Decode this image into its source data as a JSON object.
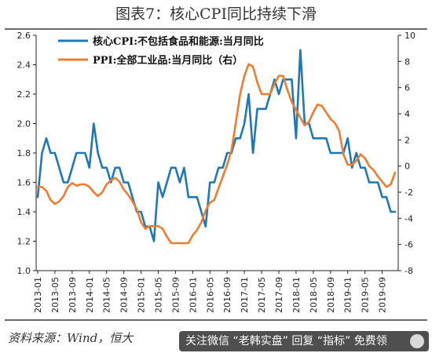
{
  "header": {
    "title": "图表7：核心CPI同比持续下滑"
  },
  "footer": {
    "source": "资料来源：Wind，恒大",
    "watermark": "关注微信 “老韩实盘” 回复 “指标” 免费领"
  },
  "chart_data": {
    "type": "line",
    "title": "",
    "xlabel": "",
    "ylabel": "",
    "x_ticks": [
      "2013-01",
      "2013-05",
      "2013-09",
      "2014-01",
      "2014-05",
      "2014-09",
      "2015-01",
      "2015-05",
      "2015-09",
      "2016-01",
      "2016-05",
      "2016-09",
      "2017-01",
      "2017-05",
      "2017-09",
      "2018-01",
      "2018-05",
      "2018-09",
      "2019-01",
      "2019-05",
      "2019-09"
    ],
    "y_left": {
      "range": [
        1.0,
        2.6
      ],
      "ticks": [
        "1.0",
        "1.2",
        "1.4",
        "1.6",
        "1.8",
        "2.0",
        "2.2",
        "2.4",
        "2.6"
      ]
    },
    "y_right": {
      "range": [
        -8,
        10
      ],
      "ticks": [
        "-8",
        "-6",
        "-4",
        "-2",
        "0",
        "2",
        "4",
        "6",
        "8",
        "10"
      ]
    },
    "legend_position": "top-left",
    "grid": false,
    "series": [
      {
        "name": "核心CPI:不包括食品和能源:当月同比",
        "axis": "left",
        "color": "#1f77b4",
        "x": [
          "2013-01",
          "2013-02",
          "2013-03",
          "2013-04",
          "2013-05",
          "2013-06",
          "2013-07",
          "2013-08",
          "2013-09",
          "2013-10",
          "2013-11",
          "2013-12",
          "2014-01",
          "2014-02",
          "2014-03",
          "2014-04",
          "2014-05",
          "2014-06",
          "2014-07",
          "2014-08",
          "2014-09",
          "2014-10",
          "2014-11",
          "2014-12",
          "2015-01",
          "2015-02",
          "2015-03",
          "2015-04",
          "2015-05",
          "2015-06",
          "2015-07",
          "2015-08",
          "2015-09",
          "2015-10",
          "2015-11",
          "2015-12",
          "2016-01",
          "2016-02",
          "2016-03",
          "2016-04",
          "2016-05",
          "2016-06",
          "2016-07",
          "2016-08",
          "2016-09",
          "2016-10",
          "2016-11",
          "2016-12",
          "2017-01",
          "2017-02",
          "2017-03",
          "2017-04",
          "2017-05",
          "2017-06",
          "2017-07",
          "2017-08",
          "2017-09",
          "2017-10",
          "2017-11",
          "2017-12",
          "2018-01",
          "2018-02",
          "2018-03",
          "2018-04",
          "2018-05",
          "2018-06",
          "2018-07",
          "2018-08",
          "2018-09",
          "2018-10",
          "2018-11",
          "2018-12",
          "2019-01",
          "2019-02",
          "2019-03",
          "2019-04",
          "2019-05",
          "2019-06",
          "2019-07",
          "2019-08",
          "2019-09",
          "2019-10",
          "2019-11",
          "2019-12"
        ],
        "values": [
          1.5,
          1.8,
          1.9,
          1.8,
          1.8,
          1.7,
          1.6,
          1.6,
          1.7,
          1.8,
          1.8,
          1.8,
          1.7,
          2.0,
          1.8,
          1.7,
          1.7,
          1.6,
          1.7,
          1.7,
          1.6,
          1.6,
          1.5,
          1.4,
          1.4,
          1.3,
          1.3,
          1.2,
          1.6,
          1.5,
          1.6,
          1.7,
          1.7,
          1.6,
          1.7,
          1.5,
          1.5,
          1.5,
          1.4,
          1.3,
          1.6,
          1.6,
          1.7,
          1.7,
          1.8,
          1.8,
          1.9,
          1.9,
          2.0,
          2.2,
          1.8,
          2.1,
          2.1,
          2.1,
          2.2,
          2.3,
          2.2,
          2.3,
          2.3,
          2.3,
          1.9,
          2.5,
          2.0,
          2.0,
          1.9,
          1.9,
          1.9,
          1.9,
          1.8,
          1.8,
          1.8,
          1.8,
          1.9,
          1.7,
          1.8,
          1.7,
          1.7,
          1.6,
          1.6,
          1.6,
          1.5,
          1.5,
          1.4,
          1.4
        ]
      },
      {
        "name": "PPI:全部工业品:当月同比（右）",
        "axis": "right",
        "color": "#ed7d31",
        "x": [
          "2013-01",
          "2013-02",
          "2013-03",
          "2013-04",
          "2013-05",
          "2013-06",
          "2013-07",
          "2013-08",
          "2013-09",
          "2013-10",
          "2013-11",
          "2013-12",
          "2014-01",
          "2014-02",
          "2014-03",
          "2014-04",
          "2014-05",
          "2014-06",
          "2014-07",
          "2014-08",
          "2014-09",
          "2014-10",
          "2014-11",
          "2014-12",
          "2015-01",
          "2015-02",
          "2015-03",
          "2015-04",
          "2015-05",
          "2015-06",
          "2015-07",
          "2015-08",
          "2015-09",
          "2015-10",
          "2015-11",
          "2015-12",
          "2016-01",
          "2016-02",
          "2016-03",
          "2016-04",
          "2016-05",
          "2016-06",
          "2016-07",
          "2016-08",
          "2016-09",
          "2016-10",
          "2016-11",
          "2016-12",
          "2017-01",
          "2017-02",
          "2017-03",
          "2017-04",
          "2017-05",
          "2017-06",
          "2017-07",
          "2017-08",
          "2017-09",
          "2017-10",
          "2017-11",
          "2017-12",
          "2018-01",
          "2018-02",
          "2018-03",
          "2018-04",
          "2018-05",
          "2018-06",
          "2018-07",
          "2018-08",
          "2018-09",
          "2018-10",
          "2018-11",
          "2018-12",
          "2019-01",
          "2019-02",
          "2019-03",
          "2019-04",
          "2019-05",
          "2019-06",
          "2019-07",
          "2019-08",
          "2019-09",
          "2019-10",
          "2019-11",
          "2019-12"
        ],
        "values": [
          -1.6,
          -1.6,
          -1.9,
          -2.6,
          -2.9,
          -2.7,
          -2.3,
          -1.6,
          -1.3,
          -1.5,
          -1.4,
          -1.4,
          -1.6,
          -2.0,
          -2.3,
          -2.0,
          -1.4,
          -1.1,
          -0.9,
          -1.2,
          -1.8,
          -2.2,
          -2.7,
          -3.3,
          -4.3,
          -4.8,
          -4.6,
          -4.6,
          -4.6,
          -4.8,
          -5.4,
          -5.9,
          -5.9,
          -5.9,
          -5.9,
          -5.9,
          -5.3,
          -4.9,
          -4.3,
          -3.4,
          -2.8,
          -2.6,
          -1.7,
          -0.8,
          0.1,
          1.2,
          3.3,
          5.5,
          6.9,
          7.8,
          7.6,
          6.4,
          5.5,
          5.5,
          5.5,
          6.3,
          6.9,
          6.9,
          5.8,
          4.9,
          4.3,
          3.7,
          3.1,
          3.4,
          4.1,
          4.7,
          4.6,
          4.1,
          3.6,
          3.3,
          2.7,
          0.9,
          0.1,
          0.1,
          0.4,
          0.9,
          0.6,
          0.0,
          -0.3,
          -0.8,
          -1.2,
          -1.6,
          -1.4,
          -0.5
        ]
      }
    ]
  }
}
